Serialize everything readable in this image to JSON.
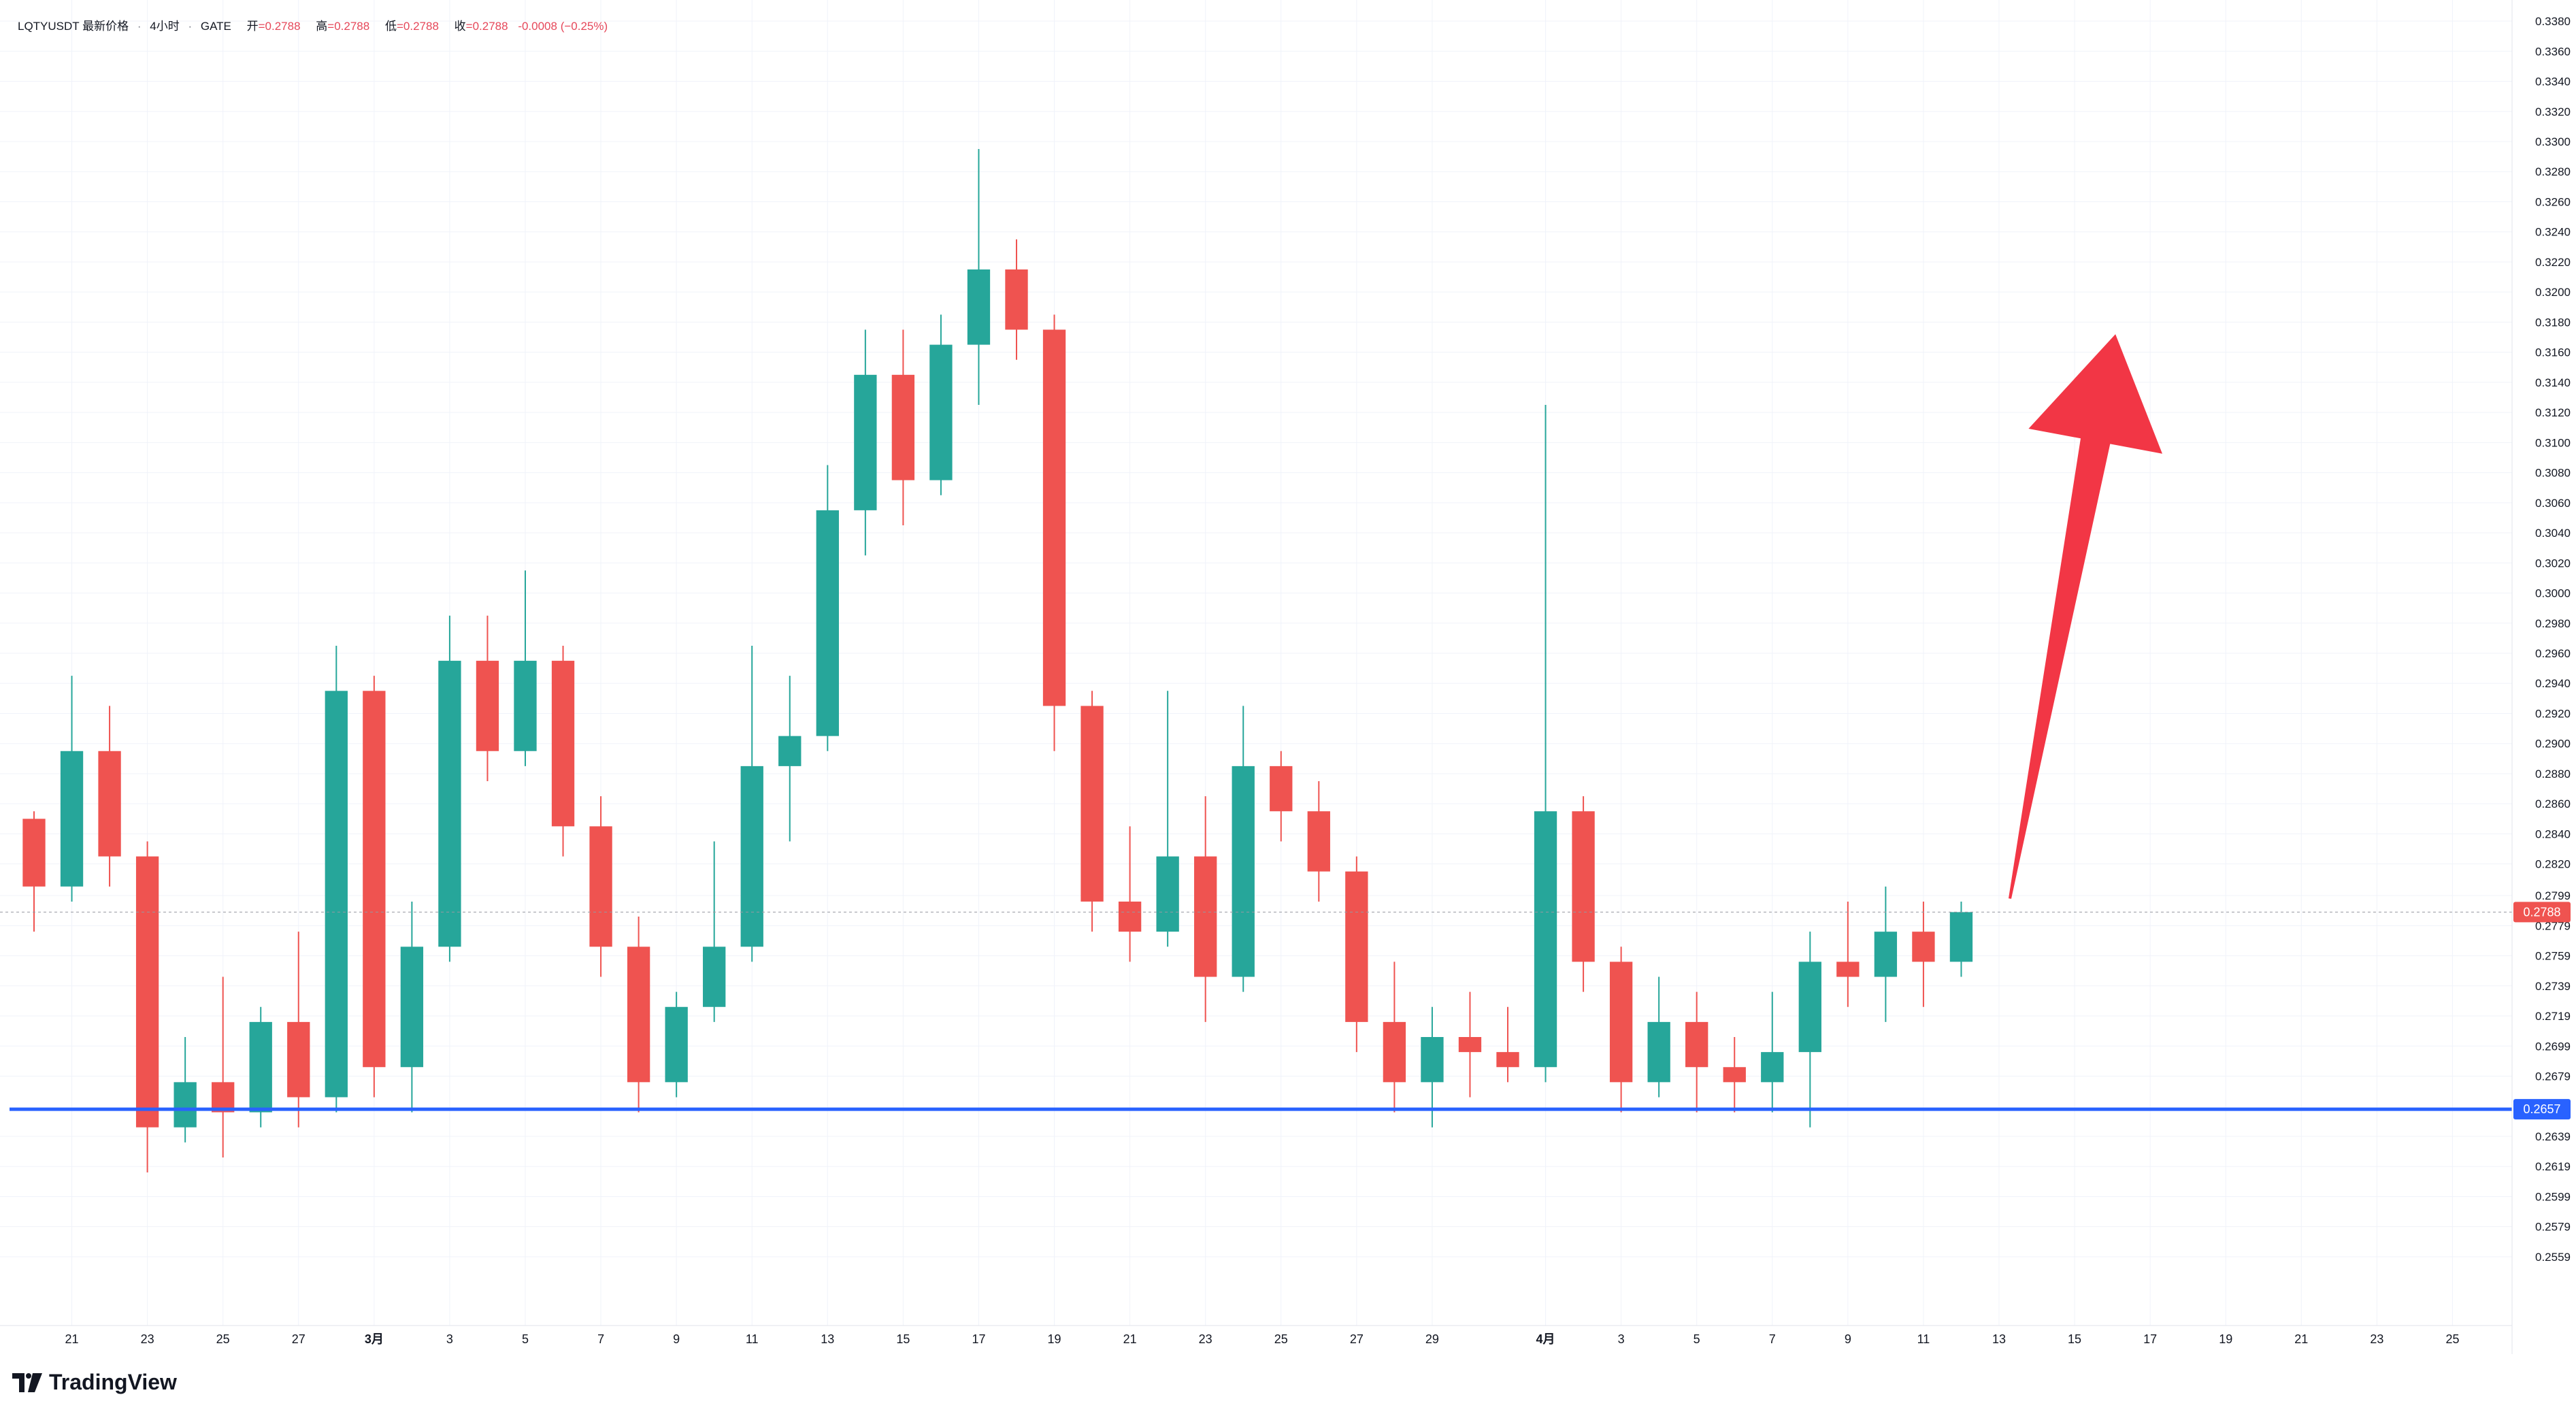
{
  "header": {
    "symbol": "LQTYUSDT",
    "metric": "最新价格",
    "interval": "4小时",
    "exchange": "GATE",
    "open_label": "开",
    "open": "=0.2788",
    "high_label": "高",
    "high": "=0.2788",
    "low_label": "低",
    "low": "=0.2788",
    "close_label": "收",
    "close": "=0.2788",
    "change": "-0.0008 (−0.25%)"
  },
  "brand": {
    "name": "TradingView",
    "icon": "tradingview-logo-icon"
  },
  "chart_data": {
    "type": "candlestick",
    "y_axis_ticks": [
      "0.3380",
      "0.3360",
      "0.3340",
      "0.3320",
      "0.3300",
      "0.3280",
      "0.3260",
      "0.3240",
      "0.3220",
      "0.3200",
      "0.3180",
      "0.3160",
      "0.3140",
      "0.3120",
      "0.3100",
      "0.3080",
      "0.3060",
      "0.3040",
      "0.3020",
      "0.3000",
      "0.2980",
      "0.2960",
      "0.2940",
      "0.2920",
      "0.2900",
      "0.2880",
      "0.2860",
      "0.2840",
      "0.2820",
      "0.2799",
      "0.2779",
      "0.2759",
      "0.2739",
      "0.2719",
      "0.2699",
      "0.2679",
      "0.2639",
      "0.2619",
      "0.2599",
      "0.2579",
      "0.2559"
    ],
    "x_axis_ticks": [
      "21",
      "23",
      "25",
      "27",
      "3月",
      "3",
      "5",
      "7",
      "9",
      "11",
      "13",
      "15",
      "17",
      "19",
      "21",
      "23",
      "25",
      "27",
      "29",
      "4月",
      "3",
      "5",
      "7",
      "9",
      "11",
      "13",
      "15",
      "17",
      "19",
      "21",
      "23",
      "25"
    ],
    "y_range": [
      0.2535,
      0.3385
    ],
    "x_range": [
      "Feb 20",
      "Apr 26"
    ],
    "last_price": "0.2788",
    "support_level": "0.2657",
    "up_color": "#26a69a",
    "down_color": "#ef5350",
    "support_color": "#2962ff",
    "arrow_color": "#f23645",
    "annotation": "red arrow pointing up",
    "candles": [
      {
        "day": "Feb 20",
        "open": 0.285,
        "high": 0.2855,
        "low": 0.2775,
        "close": 0.2805
      },
      {
        "day": "Feb 21",
        "open": 0.2805,
        "high": 0.2945,
        "low": 0.2795,
        "close": 0.2895
      },
      {
        "day": "Feb 22",
        "open": 0.2895,
        "high": 0.2925,
        "low": 0.2805,
        "close": 0.2825
      },
      {
        "day": "Feb 23",
        "open": 0.2825,
        "high": 0.2835,
        "low": 0.2615,
        "close": 0.2645
      },
      {
        "day": "Feb 24",
        "open": 0.2645,
        "high": 0.2705,
        "low": 0.2635,
        "close": 0.2675
      },
      {
        "day": "Feb 25",
        "open": 0.2675,
        "high": 0.2745,
        "low": 0.2625,
        "close": 0.2655
      },
      {
        "day": "Feb 26",
        "open": 0.2655,
        "high": 0.2725,
        "low": 0.2645,
        "close": 0.2715
      },
      {
        "day": "Feb 27",
        "open": 0.2715,
        "high": 0.2775,
        "low": 0.2645,
        "close": 0.2665
      },
      {
        "day": "Feb 28",
        "open": 0.2665,
        "high": 0.2965,
        "low": 0.2655,
        "close": 0.2935
      },
      {
        "day": "Mar 1",
        "open": 0.2935,
        "high": 0.2945,
        "low": 0.2665,
        "close": 0.2685
      },
      {
        "day": "Mar 2",
        "open": 0.2685,
        "high": 0.2795,
        "low": 0.2655,
        "close": 0.2765
      },
      {
        "day": "Mar 3",
        "open": 0.2765,
        "high": 0.2985,
        "low": 0.2755,
        "close": 0.2955
      },
      {
        "day": "Mar 4",
        "open": 0.2955,
        "high": 0.2985,
        "low": 0.2875,
        "close": 0.2895
      },
      {
        "day": "Mar 5",
        "open": 0.2895,
        "high": 0.3015,
        "low": 0.2885,
        "close": 0.2955
      },
      {
        "day": "Mar 6",
        "open": 0.2955,
        "high": 0.2965,
        "low": 0.2825,
        "close": 0.2845
      },
      {
        "day": "Mar 7",
        "open": 0.2845,
        "high": 0.2865,
        "low": 0.2745,
        "close": 0.2765
      },
      {
        "day": "Mar 8",
        "open": 0.2765,
        "high": 0.2785,
        "low": 0.2655,
        "close": 0.2675
      },
      {
        "day": "Mar 9",
        "open": 0.2675,
        "high": 0.2735,
        "low": 0.2665,
        "close": 0.2725
      },
      {
        "day": "Mar 10",
        "open": 0.2725,
        "high": 0.2835,
        "low": 0.2715,
        "close": 0.2765
      },
      {
        "day": "Mar 11",
        "open": 0.2765,
        "high": 0.2965,
        "low": 0.2755,
        "close": 0.2885
      },
      {
        "day": "Mar 12",
        "open": 0.2885,
        "high": 0.2945,
        "low": 0.2835,
        "close": 0.2905
      },
      {
        "day": "Mar 13",
        "open": 0.2905,
        "high": 0.3085,
        "low": 0.2895,
        "close": 0.3055
      },
      {
        "day": "Mar 14",
        "open": 0.3055,
        "high": 0.3175,
        "low": 0.3025,
        "close": 0.3145
      },
      {
        "day": "Mar 15",
        "open": 0.3145,
        "high": 0.3175,
        "low": 0.3045,
        "close": 0.3075
      },
      {
        "day": "Mar 16",
        "open": 0.3075,
        "high": 0.3185,
        "low": 0.3065,
        "close": 0.3165
      },
      {
        "day": "Mar 17",
        "open": 0.3165,
        "high": 0.3295,
        "low": 0.3125,
        "close": 0.3215
      },
      {
        "day": "Mar 18",
        "open": 0.3215,
        "high": 0.3235,
        "low": 0.3155,
        "close": 0.3175
      },
      {
        "day": "Mar 19",
        "open": 0.3175,
        "high": 0.3185,
        "low": 0.2895,
        "close": 0.2925
      },
      {
        "day": "Mar 20",
        "open": 0.2925,
        "high": 0.2935,
        "low": 0.2775,
        "close": 0.2795
      },
      {
        "day": "Mar 21",
        "open": 0.2795,
        "high": 0.2845,
        "low": 0.2755,
        "close": 0.2775
      },
      {
        "day": "Mar 22",
        "open": 0.2775,
        "high": 0.2935,
        "low": 0.2765,
        "close": 0.2825
      },
      {
        "day": "Mar 23",
        "open": 0.2825,
        "high": 0.2865,
        "low": 0.2715,
        "close": 0.2745
      },
      {
        "day": "Mar 24",
        "open": 0.2745,
        "high": 0.2925,
        "low": 0.2735,
        "close": 0.2885
      },
      {
        "day": "Mar 25",
        "open": 0.2885,
        "high": 0.2895,
        "low": 0.2835,
        "close": 0.2855
      },
      {
        "day": "Mar 26",
        "open": 0.2855,
        "high": 0.2875,
        "low": 0.2795,
        "close": 0.2815
      },
      {
        "day": "Mar 27",
        "open": 0.2815,
        "high": 0.2825,
        "low": 0.2695,
        "close": 0.2715
      },
      {
        "day": "Mar 28",
        "open": 0.2715,
        "high": 0.2755,
        "low": 0.2655,
        "close": 0.2675
      },
      {
        "day": "Mar 29",
        "open": 0.2675,
        "high": 0.2725,
        "low": 0.2645,
        "close": 0.2705
      },
      {
        "day": "Mar 30",
        "open": 0.2705,
        "high": 0.2735,
        "low": 0.2665,
        "close": 0.2695
      },
      {
        "day": "Mar 31",
        "open": 0.2695,
        "high": 0.2725,
        "low": 0.2675,
        "close": 0.2685
      },
      {
        "day": "Apr 1",
        "open": 0.2685,
        "high": 0.3125,
        "low": 0.2675,
        "close": 0.2855
      },
      {
        "day": "Apr 2",
        "open": 0.2855,
        "high": 0.2865,
        "low": 0.2735,
        "close": 0.2755
      },
      {
        "day": "Apr 3",
        "open": 0.2755,
        "high": 0.2765,
        "low": 0.2655,
        "close": 0.2675
      },
      {
        "day": "Apr 4",
        "open": 0.2675,
        "high": 0.2745,
        "low": 0.2665,
        "close": 0.2715
      },
      {
        "day": "Apr 5",
        "open": 0.2715,
        "high": 0.2735,
        "low": 0.2655,
        "close": 0.2685
      },
      {
        "day": "Apr 6",
        "open": 0.2685,
        "high": 0.2705,
        "low": 0.2655,
        "close": 0.2675
      },
      {
        "day": "Apr 7",
        "open": 0.2675,
        "high": 0.2735,
        "low": 0.2655,
        "close": 0.2695
      },
      {
        "day": "Apr 8",
        "open": 0.2695,
        "high": 0.2775,
        "low": 0.2645,
        "close": 0.2755
      },
      {
        "day": "Apr 9",
        "open": 0.2755,
        "high": 0.2795,
        "low": 0.2725,
        "close": 0.2745
      },
      {
        "day": "Apr 10",
        "open": 0.2745,
        "high": 0.2805,
        "low": 0.2715,
        "close": 0.2775
      },
      {
        "day": "Apr 11",
        "open": 0.2775,
        "high": 0.2795,
        "low": 0.2725,
        "close": 0.2755
      },
      {
        "day": "Apr 12",
        "open": 0.2755,
        "high": 0.2795,
        "low": 0.2745,
        "close": 0.2788
      }
    ]
  }
}
